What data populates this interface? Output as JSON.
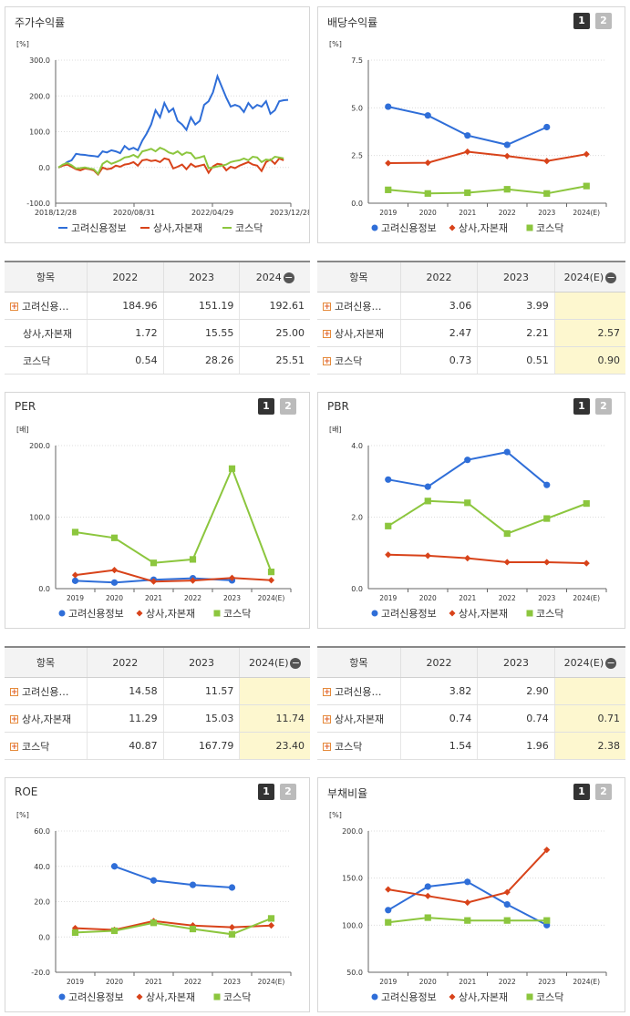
{
  "colors": {
    "company": "#2f6ed8",
    "sector": "#d8431a",
    "kosdaq": "#8cc63e"
  },
  "legend": {
    "company": "고려신용정보",
    "sector": "상사,자본재",
    "kosdaq": "코스닥"
  },
  "tables": [
    {
      "cols": [
        "항목",
        "2022",
        "2023",
        "2024"
      ],
      "minus": true,
      "est": false,
      "rows": [
        {
          "name": "고려신용…",
          "plus": true,
          "vals": [
            "184.96",
            "151.19",
            "192.61"
          ]
        },
        {
          "name": "상사,자본재",
          "plus": false,
          "vals": [
            "1.72",
            "15.55",
            "25.00"
          ]
        },
        {
          "name": "코스닥",
          "plus": false,
          "vals": [
            "0.54",
            "28.26",
            "25.51"
          ]
        }
      ]
    },
    {
      "cols": [
        "항목",
        "2022",
        "2023",
        "2024(E)"
      ],
      "minus": true,
      "est": true,
      "rows": [
        {
          "name": "고려신용…",
          "plus": true,
          "vals": [
            "3.06",
            "3.99",
            ""
          ]
        },
        {
          "name": "상사,자본재",
          "plus": true,
          "vals": [
            "2.47",
            "2.21",
            "2.57"
          ]
        },
        {
          "name": "코스닥",
          "plus": true,
          "vals": [
            "0.73",
            "0.51",
            "0.90"
          ]
        }
      ]
    },
    {
      "cols": [
        "항목",
        "2022",
        "2023",
        "2024(E)"
      ],
      "minus": true,
      "est": true,
      "rows": [
        {
          "name": "고려신용…",
          "plus": true,
          "vals": [
            "14.58",
            "11.57",
            ""
          ]
        },
        {
          "name": "상사,자본재",
          "plus": true,
          "vals": [
            "11.29",
            "15.03",
            "11.74"
          ]
        },
        {
          "name": "코스닥",
          "plus": true,
          "vals": [
            "40.87",
            "167.79",
            "23.40"
          ]
        }
      ]
    },
    {
      "cols": [
        "항목",
        "2022",
        "2023",
        "2024(E)"
      ],
      "minus": true,
      "est": true,
      "rows": [
        {
          "name": "고려신용…",
          "plus": true,
          "vals": [
            "3.82",
            "2.90",
            ""
          ]
        },
        {
          "name": "상사,자본재",
          "plus": true,
          "vals": [
            "0.74",
            "0.74",
            "0.71"
          ]
        },
        {
          "name": "코스닥",
          "plus": true,
          "vals": [
            "1.54",
            "1.96",
            "2.38"
          ]
        }
      ]
    }
  ],
  "chart_data": [
    {
      "type": "line",
      "title": "주가수익률",
      "unit": "[%]",
      "ylim": [
        -100,
        300
      ],
      "yticks": [
        "300.0",
        "200.0",
        "100.0",
        "0.0",
        "-100.0"
      ],
      "x_labels": [
        "2018/12/28",
        "2020/08/31",
        "2022/04/29",
        "2023/12/28"
      ],
      "series": [
        {
          "name": "고려신용정보",
          "key": "company",
          "values": [
            0,
            5,
            15,
            20,
            38,
            36,
            35,
            33,
            32,
            30,
            45,
            42,
            48,
            45,
            40,
            60,
            50,
            55,
            48,
            75,
            95,
            120,
            160,
            140,
            180,
            155,
            165,
            130,
            120,
            105,
            140,
            120,
            130,
            175,
            185,
            210,
            255,
            225,
            195,
            170,
            175,
            170,
            155,
            180,
            165,
            175,
            170,
            185,
            150,
            160,
            185,
            188,
            189
          ]
        },
        {
          "name": "상사,자본재",
          "key": "sector",
          "values": [
            0,
            5,
            8,
            2,
            -5,
            -8,
            -3,
            -5,
            -8,
            -20,
            0,
            -5,
            -3,
            5,
            2,
            8,
            10,
            15,
            5,
            20,
            22,
            18,
            20,
            15,
            25,
            22,
            -3,
            2,
            8,
            -5,
            10,
            2,
            5,
            8,
            -15,
            3,
            10,
            8,
            -8,
            2,
            -2,
            5,
            10,
            15,
            8,
            5,
            -10,
            15,
            22,
            10,
            25,
            20
          ]
        },
        {
          "name": "코스닥",
          "key": "kosdaq",
          "values": [
            0,
            8,
            12,
            6,
            -3,
            -2,
            0,
            -3,
            -5,
            -18,
            10,
            18,
            10,
            15,
            20,
            28,
            30,
            35,
            28,
            45,
            48,
            52,
            45,
            55,
            50,
            42,
            38,
            45,
            35,
            42,
            40,
            25,
            28,
            32,
            -2,
            0,
            3,
            5,
            8,
            15,
            18,
            20,
            25,
            20,
            30,
            28,
            15,
            22,
            20,
            30,
            28,
            25
          ]
        }
      ]
    },
    {
      "type": "line",
      "title": "배당수익률",
      "unit": "[%]",
      "ylim": [
        0,
        7.5
      ],
      "yticks": [
        "7.5",
        "5.0",
        "2.5",
        "0.0"
      ],
      "categories": [
        "2019",
        "2020",
        "2021",
        "2022",
        "2023",
        "2024(E)"
      ],
      "series": [
        {
          "name": "고려신용정보",
          "key": "company",
          "values": [
            5.06,
            4.6,
            3.55,
            3.06,
            3.99,
            null
          ]
        },
        {
          "name": "상사,자본재",
          "key": "sector",
          "values": [
            2.1,
            2.12,
            2.7,
            2.47,
            2.21,
            2.57
          ]
        },
        {
          "name": "코스닥",
          "key": "kosdaq",
          "values": [
            0.7,
            0.51,
            0.55,
            0.73,
            0.51,
            0.9
          ]
        }
      ]
    },
    {
      "type": "line",
      "title": "PER",
      "unit": "[배]",
      "ylim": [
        0,
        200
      ],
      "yticks": [
        "200.0",
        "100.0",
        "0.0"
      ],
      "categories": [
        "2019",
        "2020",
        "2021",
        "2022",
        "2023",
        "2024(E)"
      ],
      "series": [
        {
          "name": "고려신용정보",
          "key": "company",
          "values": [
            11,
            8.5,
            12.5,
            14.58,
            11.57,
            null
          ]
        },
        {
          "name": "상사,자본재",
          "key": "sector",
          "values": [
            19,
            26,
            10,
            11.29,
            15.03,
            11.74
          ]
        },
        {
          "name": "코스닥",
          "key": "kosdaq",
          "values": [
            79,
            71,
            36,
            40.87,
            167.79,
            23.4
          ]
        }
      ]
    },
    {
      "type": "line",
      "title": "PBR",
      "unit": "[배]",
      "ylim": [
        0,
        4
      ],
      "yticks": [
        "4.0",
        "2.0",
        "0.0"
      ],
      "categories": [
        "2019",
        "2020",
        "2021",
        "2022",
        "2023",
        "2024(E)"
      ],
      "series": [
        {
          "name": "고려신용정보",
          "key": "company",
          "values": [
            3.05,
            2.85,
            3.6,
            3.82,
            2.9,
            null
          ]
        },
        {
          "name": "상사,자본재",
          "key": "sector",
          "values": [
            0.95,
            0.92,
            0.85,
            0.74,
            0.74,
            0.71
          ]
        },
        {
          "name": "코스닥",
          "key": "kosdaq",
          "values": [
            1.75,
            2.45,
            2.4,
            1.54,
            1.96,
            2.38
          ]
        }
      ]
    },
    {
      "type": "line",
      "title": "ROE",
      "unit": "[%]",
      "ylim": [
        -20,
        60
      ],
      "yticks": [
        "60.0",
        "40.0",
        "20.0",
        "0.0",
        "-20.0"
      ],
      "categories": [
        "2019",
        "2020",
        "2021",
        "2022",
        "2023",
        "2024(E)"
      ],
      "series": [
        {
          "name": "고려신용정보",
          "key": "company",
          "values": [
            null,
            40,
            32,
            29.5,
            28,
            null
          ]
        },
        {
          "name": "상사,자본재",
          "key": "sector",
          "values": [
            5,
            4,
            9,
            6.5,
            5.5,
            6.5
          ]
        },
        {
          "name": "코스닥",
          "key": "kosdaq",
          "values": [
            2.5,
            3.5,
            8,
            4.5,
            1.5,
            10.5
          ]
        }
      ]
    },
    {
      "type": "line",
      "title": "부채비율",
      "unit": "[%]",
      "ylim": [
        50,
        200
      ],
      "yticks": [
        "200.0",
        "150.0",
        "100.0",
        "50.0"
      ],
      "categories": [
        "2019",
        "2020",
        "2021",
        "2022",
        "2023",
        "2024(E)"
      ],
      "series": [
        {
          "name": "고려신용정보",
          "key": "company",
          "values": [
            116,
            141,
            146,
            122,
            100,
            null
          ]
        },
        {
          "name": "상사,자본재",
          "key": "sector",
          "values": [
            138,
            131,
            124,
            135,
            180,
            null
          ]
        },
        {
          "name": "코스닥",
          "key": "kosdaq",
          "values": [
            103,
            108,
            105,
            105,
            105,
            null
          ]
        }
      ]
    }
  ]
}
